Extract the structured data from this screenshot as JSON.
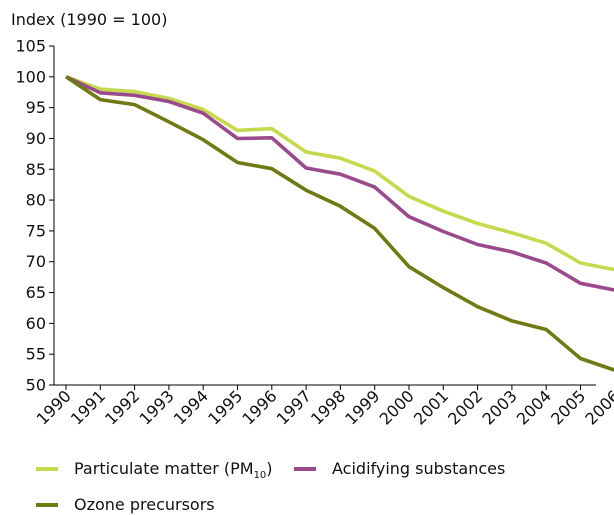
{
  "chart_data": {
    "type": "line",
    "ylabel": "Index (1990 = 100)",
    "xlabel": "",
    "ylim": [
      50,
      105
    ],
    "yticks": [
      50,
      55,
      60,
      65,
      70,
      75,
      80,
      85,
      90,
      95,
      100,
      105
    ],
    "categories": [
      "1990",
      "1991",
      "1992",
      "1993",
      "1994",
      "1995",
      "1996",
      "1997",
      "1998",
      "1999",
      "2000",
      "2001",
      "2002",
      "2003",
      "2004",
      "2005",
      "2006"
    ],
    "grid": false,
    "legend_position": "bottom",
    "series": [
      {
        "name_main": "Particulate matter (PM",
        "name_sub": "10",
        "name_end": ")",
        "color": "#c6d94c",
        "values": [
          100,
          98.0,
          97.6,
          96.5,
          94.7,
          91.3,
          91.6,
          87.8,
          86.8,
          84.7,
          80.6,
          78.2,
          76.2,
          74.7,
          73.0,
          69.8,
          68.7
        ]
      },
      {
        "name": "Acidifying substances",
        "color": "#9a4a8c",
        "values": [
          100,
          97.4,
          97.0,
          96.0,
          94.1,
          90.0,
          90.1,
          85.2,
          84.2,
          82.1,
          77.3,
          74.9,
          72.8,
          71.6,
          69.8,
          66.5,
          65.4
        ]
      },
      {
        "name": "Ozone precursors",
        "color": "#6f7a12",
        "values": [
          100,
          96.3,
          95.5,
          92.7,
          89.8,
          86.1,
          85.1,
          81.6,
          79.0,
          75.4,
          69.2,
          65.8,
          62.7,
          60.4,
          59.0,
          54.3,
          52.4
        ]
      }
    ]
  }
}
